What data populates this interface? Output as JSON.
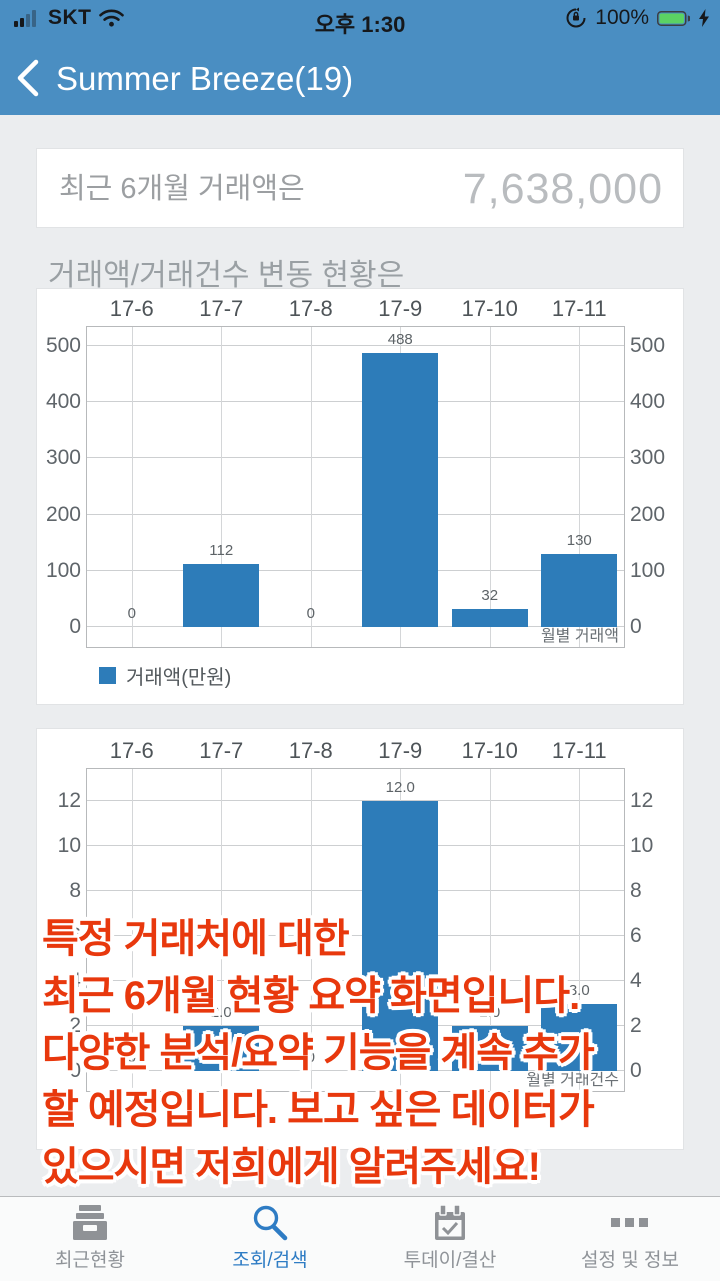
{
  "status_bar": {
    "carrier": "SKT",
    "time": "오후 1:30",
    "battery_percent": "100%"
  },
  "nav": {
    "title": "Summer Breeze(19)"
  },
  "summary_card": {
    "label": "최근 6개월 거래액은",
    "value": "7,638,000"
  },
  "section": {
    "title": "거래액/거래건수 변동 현황은"
  },
  "chart_data": [
    {
      "type": "bar",
      "categories": [
        "17-6",
        "17-7",
        "17-8",
        "17-9",
        "17-10",
        "17-11"
      ],
      "values": [
        0,
        112,
        0,
        488,
        32,
        130
      ],
      "value_labels": [
        "0",
        "112",
        "0",
        "488",
        "32",
        "130"
      ],
      "y_ticks": [
        0,
        100,
        200,
        300,
        400,
        500
      ],
      "ylim": [
        0,
        535
      ],
      "xlabel": "월별 거래액",
      "ylabel": "",
      "legend": "거래액(만원)",
      "legend_position": "bottom-left",
      "grid": true,
      "bar_color": "#2d7cb9"
    },
    {
      "type": "bar",
      "categories": [
        "17-6",
        "17-7",
        "17-8",
        "17-9",
        "17-10",
        "17-11"
      ],
      "values": [
        0,
        2,
        0,
        12,
        2,
        3
      ],
      "value_labels": [
        "0",
        "2.0",
        "0",
        "12.0",
        "2.0",
        "3.0"
      ],
      "y_ticks": [
        0,
        2,
        4,
        6,
        8,
        10,
        12
      ],
      "ylim": [
        0,
        13.4
      ],
      "xlabel": "월별 거래건수",
      "ylabel": "",
      "legend": null,
      "grid": true,
      "bar_color": "#2d7cb9"
    }
  ],
  "overlay": {
    "color": "#e8380d",
    "lines": [
      "특정 거래처에 대한",
      "최근 6개월 현황 요약 화면입니다.",
      "다양한 분석/요약 기능을 계속 추가",
      "할 예정입니다. 보고 싶은 데이터가",
      "있으시면 저희에게 알려주세요!"
    ]
  },
  "tab_bar": {
    "active_color": "#2e7cc4",
    "items": [
      {
        "label": "최근현황",
        "icon": "archive-icon",
        "active": false
      },
      {
        "label": "조회/검색",
        "icon": "search-icon",
        "active": true
      },
      {
        "label": "투데이/결산",
        "icon": "calendar-check-icon",
        "active": false
      },
      {
        "label": "설정 및 정보",
        "icon": "more-squares-icon",
        "active": false
      }
    ]
  }
}
